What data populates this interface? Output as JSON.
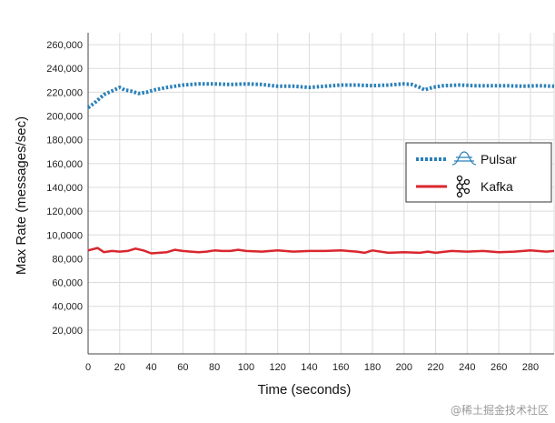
{
  "chart_data": {
    "type": "line",
    "xlabel": "Time (seconds)",
    "ylabel": "Max Rate (messages/sec)",
    "xlim": [
      0,
      295
    ],
    "ylim": [
      0,
      270000
    ],
    "x_ticks": [
      0,
      20,
      40,
      60,
      80,
      100,
      120,
      140,
      160,
      180,
      200,
      220,
      240,
      260,
      280
    ],
    "y_ticks": [
      20000,
      40000,
      60000,
      80000,
      100000,
      120000,
      140000,
      160000,
      180000,
      200000,
      220000,
      240000,
      260000
    ],
    "y_tick_labels": [
      "20,000",
      "40,000",
      "60,000",
      "80,000",
      "10,0000",
      "120,000",
      "140,000",
      "160,000",
      "180,000",
      "200,000",
      "220,000",
      "240,000",
      "260,000"
    ],
    "grid": true,
    "legend_position": "right",
    "series": [
      {
        "name": "Pulsar",
        "color": "#2a80b9",
        "style": "dotted",
        "icon": "pulsar-logo-icon",
        "x": [
          0,
          5,
          10,
          15,
          20,
          23,
          27,
          32,
          37,
          42,
          50,
          60,
          70,
          80,
          90,
          100,
          110,
          120,
          130,
          140,
          150,
          160,
          170,
          180,
          190,
          200,
          205,
          210,
          213,
          218,
          225,
          235,
          245,
          255,
          265,
          275,
          285,
          295
        ],
        "y": [
          207000,
          212000,
          218000,
          221000,
          224000,
          222000,
          221000,
          219000,
          220000,
          222000,
          224000,
          226000,
          227000,
          227000,
          226500,
          227000,
          226500,
          225000,
          225000,
          224000,
          225000,
          226000,
          226000,
          225500,
          226000,
          227000,
          226500,
          224000,
          222000,
          224000,
          225500,
          226000,
          225500,
          225500,
          225500,
          225000,
          225500,
          225000
        ]
      },
      {
        "name": "Kafka",
        "color": "#d9262f",
        "style": "solid",
        "icon": "kafka-logo-icon",
        "x": [
          0,
          3,
          6,
          10,
          15,
          20,
          25,
          30,
          35,
          40,
          45,
          50,
          55,
          60,
          65,
          70,
          75,
          80,
          85,
          90,
          95,
          100,
          110,
          120,
          130,
          140,
          150,
          160,
          170,
          175,
          180,
          190,
          200,
          210,
          215,
          220,
          230,
          240,
          250,
          260,
          270,
          280,
          290,
          295
        ],
        "y": [
          87000,
          88000,
          89000,
          85500,
          86500,
          86000,
          86500,
          88500,
          87000,
          84500,
          85000,
          85500,
          87500,
          86500,
          86000,
          85500,
          86000,
          87000,
          86500,
          86500,
          87500,
          86500,
          86000,
          87000,
          86000,
          86500,
          86500,
          87000,
          86000,
          85000,
          87000,
          85000,
          85500,
          85000,
          86000,
          85000,
          86500,
          86000,
          86500,
          85500,
          86000,
          87000,
          86000,
          86500
        ]
      }
    ]
  },
  "watermark": "@稀土掘金技术社区"
}
